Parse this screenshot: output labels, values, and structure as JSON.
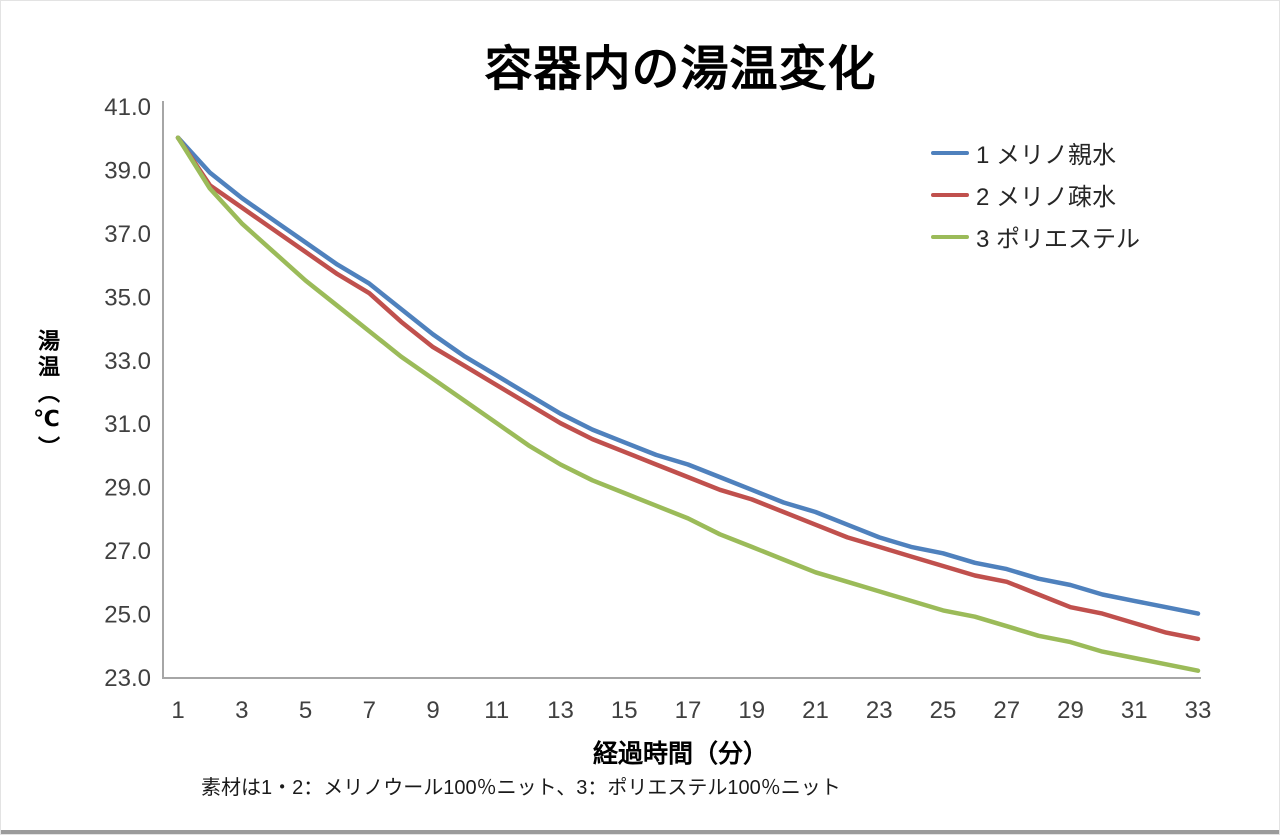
{
  "title": "容器内の湯温変化",
  "footnote": "素材は1・2：メリノウール100％ニット、3：ポリエステル100％ニット",
  "colors": {
    "axis_line": "#a6a6a6",
    "tick_text": "#404040",
    "series_blue": "#4F81BD",
    "series_red": "#C0504D",
    "series_green": "#9BBB59"
  },
  "chart_data": {
    "type": "line",
    "title": "容器内の湯温変化",
    "xlabel": "経過時間（分）",
    "ylabel": "湯温（℃）",
    "xlim": [
      1,
      33
    ],
    "ylim": [
      23.0,
      41.0
    ],
    "grid": false,
    "legend_position": "upper right",
    "x_ticks": [
      1,
      3,
      5,
      7,
      9,
      11,
      13,
      15,
      17,
      19,
      21,
      23,
      25,
      27,
      29,
      31,
      33
    ],
    "y_ticks": [
      "41.0",
      "39.0",
      "37.0",
      "35.0",
      "33.0",
      "31.0",
      "29.0",
      "27.0",
      "25.0",
      "23.0"
    ],
    "x": [
      1,
      2,
      3,
      4,
      5,
      6,
      7,
      8,
      9,
      10,
      11,
      12,
      13,
      14,
      15,
      16,
      17,
      18,
      19,
      20,
      21,
      22,
      23,
      24,
      25,
      26,
      27,
      28,
      29,
      30,
      31,
      32,
      33
    ],
    "series": [
      {
        "name": "1 メリノ親水",
        "color": "#4F81BD",
        "values": [
          40.0,
          38.9,
          38.1,
          37.4,
          36.7,
          36.0,
          35.4,
          34.6,
          33.8,
          33.1,
          32.5,
          31.9,
          31.3,
          30.8,
          30.4,
          30.0,
          29.7,
          29.3,
          28.9,
          28.5,
          28.2,
          27.8,
          27.4,
          27.1,
          26.9,
          26.6,
          26.4,
          26.1,
          25.9,
          25.6,
          25.4,
          25.2,
          25.0
        ]
      },
      {
        "name": "2 メリノ疎水",
        "color": "#C0504D",
        "values": [
          40.0,
          38.5,
          37.8,
          37.1,
          36.4,
          35.7,
          35.1,
          34.2,
          33.4,
          32.8,
          32.2,
          31.6,
          31.0,
          30.5,
          30.1,
          29.7,
          29.3,
          28.9,
          28.6,
          28.2,
          27.8,
          27.4,
          27.1,
          26.8,
          26.5,
          26.2,
          26.0,
          25.6,
          25.2,
          25.0,
          24.7,
          24.4,
          24.2
        ]
      },
      {
        "name": "3 ポリエステル",
        "color": "#9BBB59",
        "values": [
          40.0,
          38.4,
          37.3,
          36.4,
          35.5,
          34.7,
          33.9,
          33.1,
          32.4,
          31.7,
          31.0,
          30.3,
          29.7,
          29.2,
          28.8,
          28.4,
          28.0,
          27.5,
          27.1,
          26.7,
          26.3,
          26.0,
          25.7,
          25.4,
          25.1,
          24.9,
          24.6,
          24.3,
          24.1,
          23.8,
          23.6,
          23.4,
          23.2
        ]
      }
    ]
  }
}
